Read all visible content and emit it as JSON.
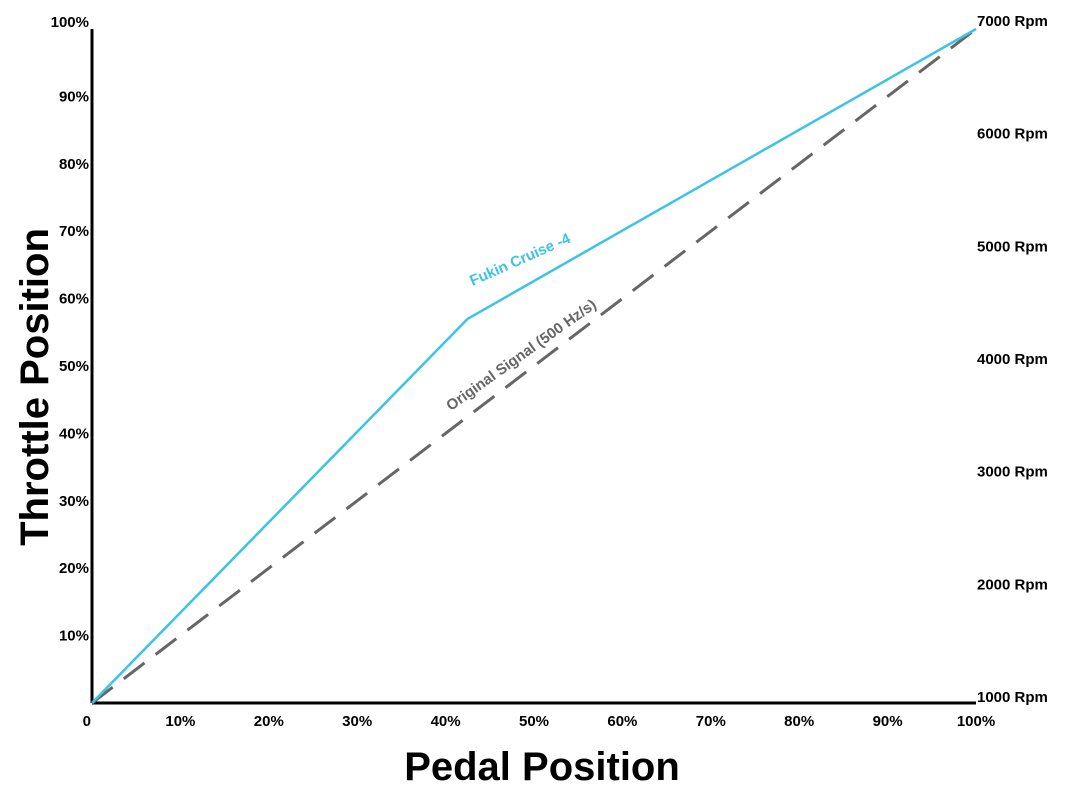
{
  "chart_data": {
    "type": "line",
    "title": "",
    "xlabel": "Pedal Position",
    "ylabel": "Throttle Position",
    "xlim": [
      0,
      100
    ],
    "ylim": [
      0,
      100
    ],
    "grid": false,
    "x_ticks": [
      "0",
      "10%",
      "20%",
      "30%",
      "40%",
      "50%",
      "60%",
      "70%",
      "80%",
      "90%",
      "100%"
    ],
    "y_ticks": [
      "10%",
      "20%",
      "30%",
      "40%",
      "50%",
      "60%",
      "70%",
      "80%",
      "90%",
      "100%"
    ],
    "y2_axis": {
      "range_rpm": [
        1000,
        7000
      ],
      "tick_values": [
        1000,
        2000,
        3000,
        4000,
        5000,
        6000,
        7000
      ],
      "tick_labels": [
        "1000 Rpm",
        "2000 Rpm",
        "3000 Rpm",
        "4000 Rpm",
        "5000 Rpm",
        "6000 Rpm",
        "7000 Rpm"
      ]
    },
    "series": [
      {
        "name": "Fukin Cruise -4",
        "color": "#3cc3e8",
        "line_style": "solid",
        "x": [
          0,
          42.5,
          100
        ],
        "y": [
          0,
          57,
          100
        ]
      },
      {
        "name": "Original Signal (500 Hz/s)",
        "color": "#666666",
        "line_style": "dashed",
        "x": [
          0,
          100
        ],
        "y": [
          0,
          100
        ]
      }
    ]
  }
}
